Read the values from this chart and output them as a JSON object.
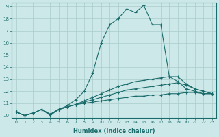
{
  "xlabel": "Humidex (Indice chaleur)",
  "bg_color": "#cce8e8",
  "grid_color": "#aacccc",
  "line_color": "#1a6b6b",
  "xlim_min": -0.5,
  "xlim_max": 23.5,
  "ylim_min": 9.8,
  "ylim_max": 19.3,
  "yticks": [
    10,
    11,
    12,
    13,
    14,
    15,
    16,
    17,
    18,
    19
  ],
  "xticks": [
    0,
    1,
    2,
    3,
    4,
    5,
    6,
    7,
    8,
    9,
    10,
    11,
    12,
    13,
    14,
    15,
    16,
    17,
    18,
    19,
    20,
    21,
    22,
    23
  ],
  "series": [
    {
      "x": [
        0,
        1,
        2,
        3,
        4,
        5,
        6,
        7,
        8,
        9,
        10,
        11,
        12,
        13,
        14,
        15,
        16,
        17,
        18,
        19,
        20,
        21,
        22,
        23
      ],
      "y": [
        10.3,
        10.0,
        10.2,
        10.5,
        10.1,
        10.5,
        10.7,
        10.9,
        11.0,
        11.1,
        11.2,
        11.3,
        11.4,
        11.5,
        11.6,
        11.6,
        11.7,
        11.7,
        11.8,
        11.8,
        11.9,
        11.9,
        11.8,
        11.8
      ]
    },
    {
      "x": [
        0,
        1,
        2,
        3,
        4,
        5,
        6,
        7,
        8,
        9,
        10,
        11,
        12,
        13,
        14,
        15,
        16,
        17,
        18,
        19,
        20,
        21,
        22,
        23
      ],
      "y": [
        10.3,
        10.0,
        10.2,
        10.5,
        10.1,
        10.5,
        10.7,
        10.9,
        11.1,
        11.3,
        11.5,
        11.7,
        11.9,
        12.1,
        12.2,
        12.3,
        12.4,
        12.5,
        12.6,
        12.7,
        12.5,
        12.2,
        12.0,
        11.8
      ]
    },
    {
      "x": [
        0,
        1,
        2,
        3,
        4,
        5,
        6,
        7,
        8,
        9,
        10,
        11,
        12,
        13,
        14,
        15,
        16,
        17,
        18,
        19,
        20,
        21,
        22,
        23
      ],
      "y": [
        10.3,
        10.0,
        10.2,
        10.5,
        10.1,
        10.5,
        10.7,
        10.9,
        11.2,
        11.5,
        11.8,
        12.1,
        12.4,
        12.6,
        12.8,
        12.9,
        13.0,
        13.1,
        13.2,
        13.2,
        12.6,
        12.2,
        12.0,
        11.8
      ]
    },
    {
      "x": [
        0,
        1,
        2,
        3,
        4,
        5,
        6,
        7,
        8,
        9,
        10,
        11,
        12,
        13,
        14,
        15,
        16,
        17,
        18,
        19,
        20,
        21,
        22,
        23
      ],
      "y": [
        10.3,
        10.0,
        10.2,
        10.5,
        10.0,
        10.5,
        10.8,
        11.3,
        12.0,
        13.5,
        16.0,
        17.5,
        18.0,
        18.8,
        18.5,
        19.1,
        17.5,
        17.5,
        13.2,
        12.8,
        12.2,
        12.0,
        11.8,
        11.8
      ]
    }
  ]
}
